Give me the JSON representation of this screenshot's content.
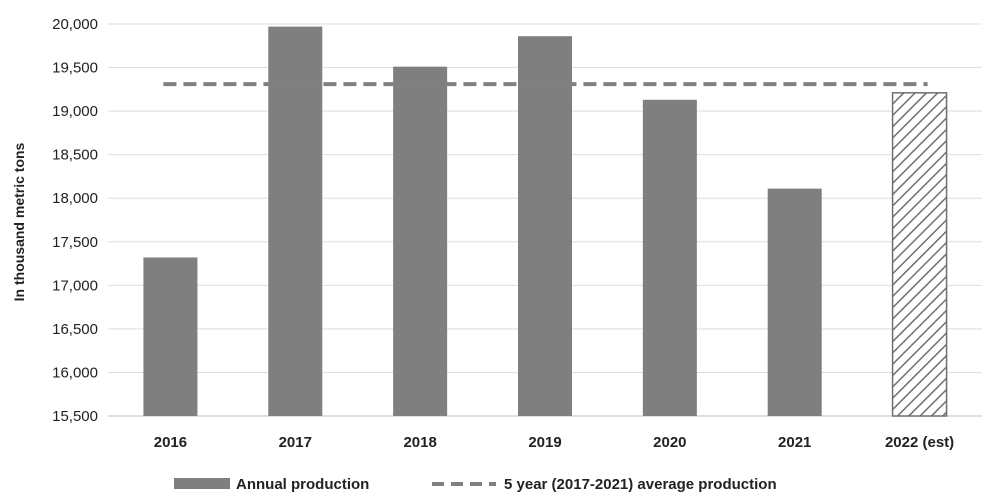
{
  "chart_data": {
    "type": "bar",
    "title": "",
    "ylabel": "In thousand metric tons",
    "xlabel": "",
    "ylim": [
      15500,
      20000
    ],
    "ytick_step": 500,
    "yticks": [
      "15,500",
      "16,000",
      "16,500",
      "17,000",
      "17,500",
      "18,000",
      "18,500",
      "19,000",
      "19,500",
      "20,000"
    ],
    "categories": [
      "2016",
      "2017",
      "2018",
      "2019",
      "2020",
      "2021",
      "2022 (est)"
    ],
    "series": [
      {
        "name": "Annual production",
        "type": "bar",
        "values": [
          17320,
          19970,
          19510,
          19860,
          19130,
          18110,
          19210
        ],
        "color": "#7f7f7f",
        "hatched_categories": [
          "2022 (est)"
        ]
      },
      {
        "name": "5 year (2017-2021) average production",
        "type": "line",
        "style": "dashed",
        "value": 19310,
        "color": "#808080"
      }
    ],
    "grid": true,
    "legend_position": "bottom"
  }
}
